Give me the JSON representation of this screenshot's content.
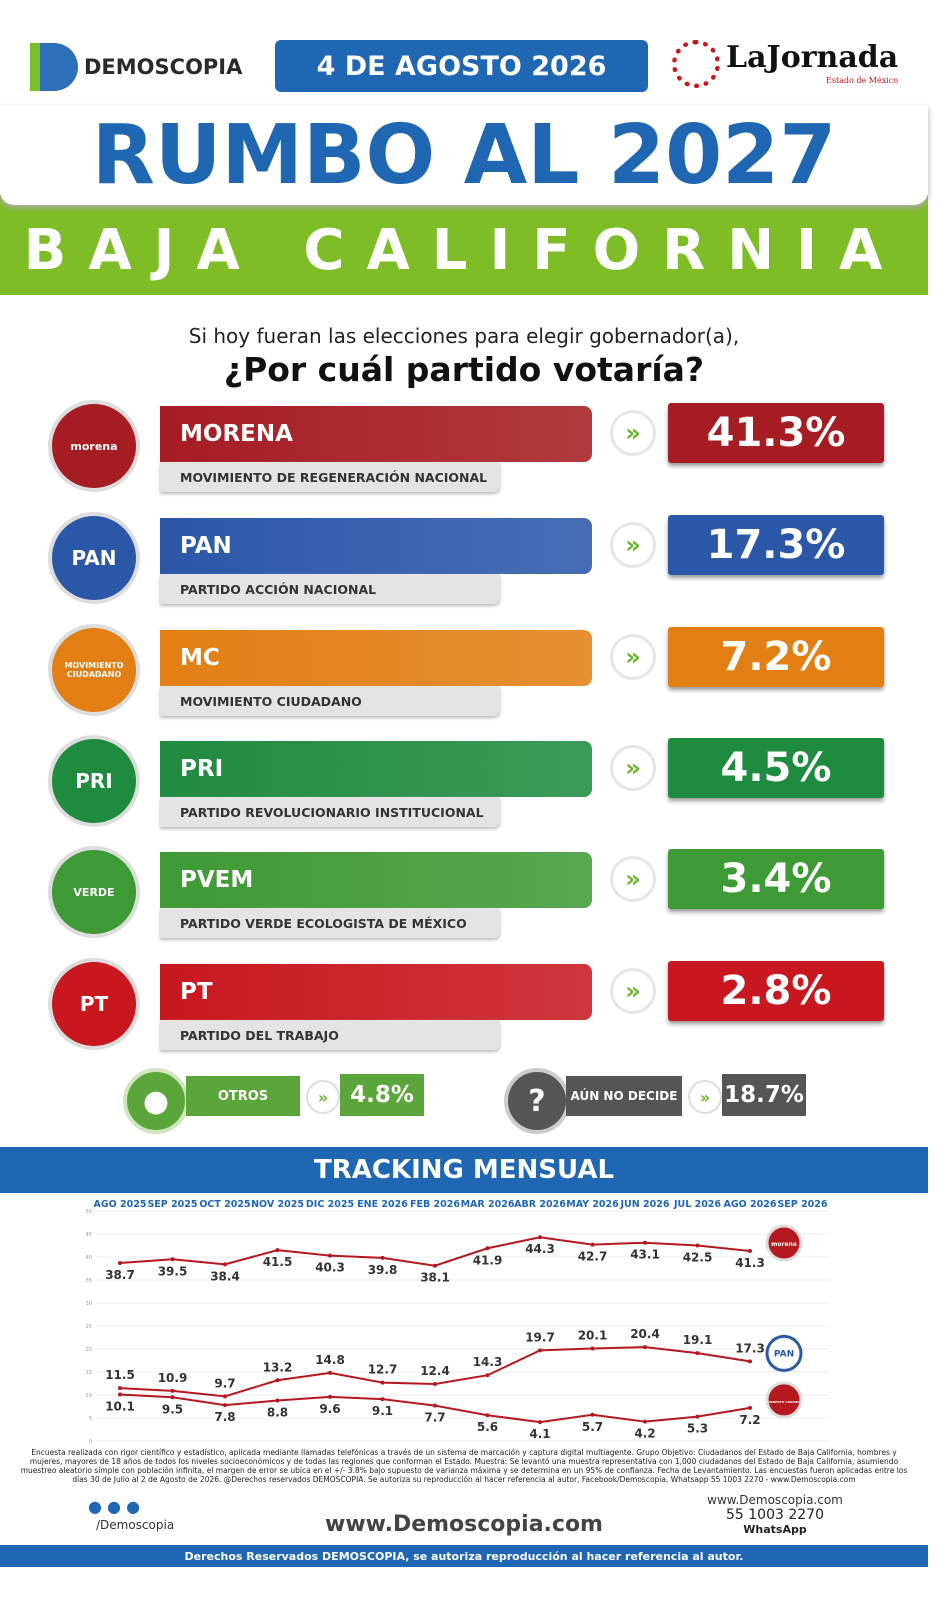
{
  "header": {
    "brand": "DEMOSCOPIA",
    "date": "4 DE AGOSTO 2026",
    "partner": "LaJornada",
    "partner_sub": "Estado de México"
  },
  "title": "RUMBO AL 2027",
  "subtitle": "BAJA CALIFORNIA",
  "question": {
    "line1": "Si hoy fueran las elecciones para elegir gobernador(a),",
    "line2": "¿Por cuál partido votaría?"
  },
  "parties": [
    {
      "logo": "morena",
      "name": "MORENA",
      "full_name": "MOVIMIENTO DE REGENERACIÓN NACIONAL",
      "result": "41.3%",
      "color": "#a51c22"
    },
    {
      "logo": "PAN",
      "name": "PAN",
      "full_name": "PARTIDO ACCIÓN NACIONAL",
      "result": "17.3%",
      "color": "#2b57a9"
    },
    {
      "logo": "MOVIMIENTO CIUDADANO",
      "name": "MC",
      "full_name": "MOVIMIENTO CIUDADANO",
      "result": "7.2%",
      "color": "#e27f14"
    },
    {
      "logo": "PRI",
      "name": "PRI",
      "full_name": "PARTIDO REVOLUCIONARIO INSTITUCIONAL",
      "result": "4.5%",
      "color": "#1f8b3f"
    },
    {
      "logo": "VERDE",
      "name": "PVEM",
      "full_name": "PARTIDO VERDE ECOLOGISTA DE MÉXICO",
      "result": "3.4%",
      "color": "#3e9a34"
    },
    {
      "logo": "PT",
      "name": "PT",
      "full_name": "PARTIDO DEL TRABAJO",
      "result": "2.8%",
      "color": "#c8171e"
    }
  ],
  "others": {
    "label": "OTROS",
    "result": "4.8%"
  },
  "undecided": {
    "icon": "?",
    "label": "AÚN NO DECIDE",
    "result": "18.7%"
  },
  "tracking_title": "TRACKING MENSUAL",
  "chart_data": {
    "type": "line",
    "categories": [
      "AGO 2025",
      "SEP 2025",
      "OCT 2025",
      "NOV 2025",
      "DIC 2025",
      "ENE 2026",
      "FEB 2026",
      "MAR 2026",
      "ABR 2026",
      "MAY 2026",
      "JUN 2026",
      "JUL 2026",
      "AGO 2026",
      "SEP 2026"
    ],
    "series": [
      {
        "name": "morena",
        "color": "#b5191f",
        "values": [
          38.7,
          39.5,
          38.4,
          41.5,
          40.3,
          39.8,
          38.1,
          41.9,
          44.3,
          42.7,
          43.1,
          42.5,
          41.3,
          null
        ]
      },
      {
        "name": "PAN",
        "color": "#b5191f",
        "values": [
          11.5,
          10.9,
          9.7,
          13.2,
          14.8,
          12.7,
          12.4,
          14.3,
          19.7,
          20.1,
          20.4,
          19.1,
          17.3,
          null
        ]
      },
      {
        "name": "MOVIMIENTO CIUDADANO",
        "color": "#b5191f",
        "values": [
          10.1,
          9.5,
          7.8,
          8.8,
          9.6,
          9.1,
          7.7,
          5.6,
          4.1,
          5.7,
          4.2,
          5.3,
          7.2,
          null
        ]
      }
    ],
    "ylim": [
      0,
      50
    ],
    "yticks": [
      0,
      5,
      10,
      15,
      20,
      25,
      30,
      35,
      40,
      45,
      50
    ],
    "grid": true
  },
  "methodology": "Encuesta realizada con rigor científico y estadístico, aplicada mediante llamadas telefónicas a través de un sistema de marcación y captura digital multiagente. Grupo Objetivo: Ciudadanos del Estado de Baja California, hombres y mujeres, mayores de 18 años de todos los niveles socioeconómicos y de todas las regiones que conforman el Estado. Muestra: Se levantó una muestra representativa con 1,000 ciudadanos del Estado de Baja California, asumiendo muestreo aleatorio simple con población infinita, el margen de error se ubica en el +/- 3.8% bajo supuesto de varianza máxima y se determina en un 95% de confianza. Fecha de Levantamiento. Las encuestas fueron aplicadas entre los días 30 de Julio al 2 de Agosto de 2026. @Derechos reservados DEMOSCOPIA. Se autoriza su reproducción al hacer referencia al autor, Facebook/Demoscopia, Whatsapp 55 1003 2270 - www.Demoscopia.com",
  "footer": {
    "social": "/Demoscopia",
    "site": "www.Demoscopia.com",
    "site_small": "www.Demoscopia.com",
    "phone": "55 1003 2270",
    "whatsapp": "WhatsApp",
    "rights": "Derechos Reservados DEMOSCOPIA, se autoriza reproducción al hacer referencia al autor."
  }
}
